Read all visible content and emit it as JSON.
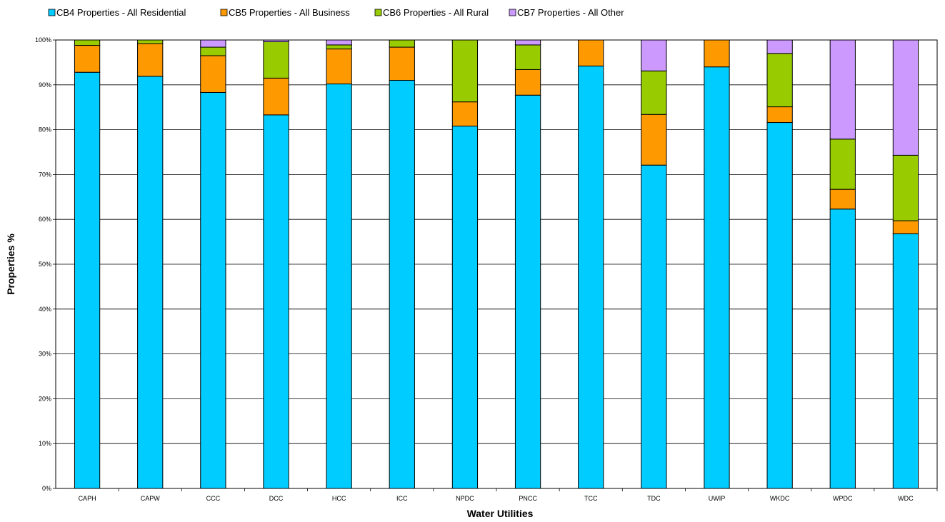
{
  "chart_data": {
    "type": "bar",
    "stacked": true,
    "percent_stacked": true,
    "title": "",
    "xlabel": "Water Utilities",
    "ylabel": "Properties %",
    "ylim": [
      0,
      100
    ],
    "y_ticks": [
      "0%",
      "10%",
      "20%",
      "30%",
      "40%",
      "50%",
      "60%",
      "70%",
      "80%",
      "90%",
      "100%"
    ],
    "grid": true,
    "legend_position": "top-left",
    "categories": [
      "CAPH",
      "CAPW",
      "CCC",
      "DCC",
      "HCC",
      "ICC",
      "NPDC",
      "PNCC",
      "TCC",
      "TDC",
      "UWIP",
      "WKDC",
      "WPDC",
      "WDC"
    ],
    "series": [
      {
        "name": "CB4 Properties - All Residential",
        "color": "#00CCFF",
        "values": [
          92.8,
          91.9,
          88.3,
          83.3,
          90.2,
          91.0,
          80.8,
          87.7,
          94.2,
          72.1,
          94.0,
          81.6,
          62.3,
          56.8
        ]
      },
      {
        "name": "CB5 Properties - All Business",
        "color": "#FF9900",
        "values": [
          6.0,
          7.3,
          8.2,
          8.2,
          7.8,
          7.4,
          5.4,
          5.7,
          5.8,
          11.3,
          6.0,
          3.5,
          4.4,
          2.9
        ]
      },
      {
        "name": "CB6 Properties - All Rural",
        "color": "#99CC00",
        "values": [
          1.2,
          0.8,
          1.9,
          8.1,
          0.9,
          1.6,
          13.8,
          5.5,
          0.0,
          9.7,
          0.0,
          11.9,
          11.2,
          14.6
        ]
      },
      {
        "name": "CB7 Properties - All Other",
        "color": "#CC99FF",
        "values": [
          0.0,
          0.0,
          1.6,
          0.4,
          1.1,
          0.0,
          0.0,
          1.1,
          0.0,
          6.9,
          0.0,
          3.0,
          22.1,
          25.7
        ]
      }
    ]
  }
}
